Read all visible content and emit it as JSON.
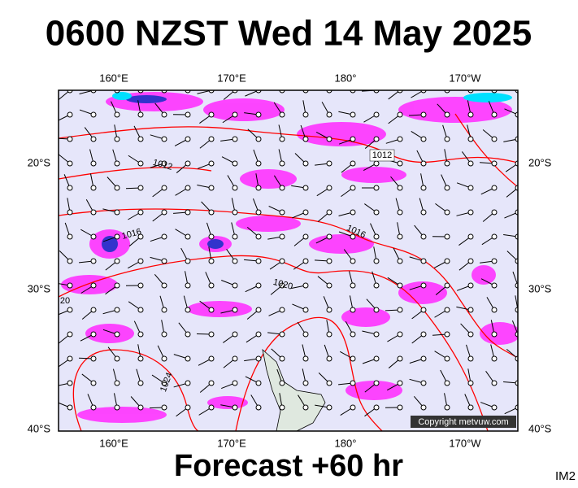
{
  "header": {
    "title": "0600 NZST Wed 14 May 2025"
  },
  "map": {
    "lon_labels": [
      "160°E",
      "170°E",
      "180°",
      "170°W"
    ],
    "lat_labels": [
      "20°S",
      "30°S",
      "40°S"
    ],
    "isobar_labels": [
      "1012",
      "1012",
      "1016",
      "1016",
      "1020",
      "20",
      "1024"
    ],
    "copyright": "Copyright metvuw.com"
  },
  "footer": {
    "forecast": "Forecast +60 hr",
    "code": "IM2"
  }
}
